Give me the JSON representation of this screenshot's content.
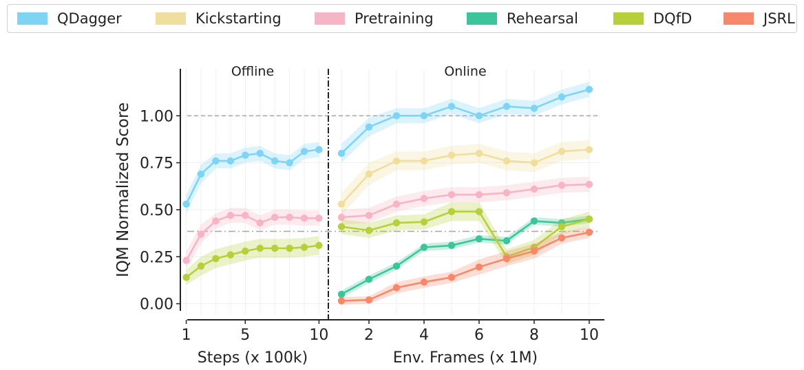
{
  "legend": {
    "entries": [
      {
        "name": "QDagger",
        "color": "#7fd4f5"
      },
      {
        "name": "Kickstarting",
        "color": "#f0df9c"
      },
      {
        "name": "Pretraining",
        "color": "#f7b4c6"
      },
      {
        "name": "Rehearsal",
        "color": "#3cc59b"
      },
      {
        "name": "DQfD",
        "color": "#b6cf3a"
      },
      {
        "name": "JSRL",
        "color": "#f7896a"
      }
    ]
  },
  "chart_data": {
    "type": "line",
    "ylabel": "IQM Normalized Score",
    "ylim": [
      -0.06,
      1.25
    ],
    "yticks": [
      "0.00",
      "0.25",
      "0.50",
      "0.75",
      "1.00"
    ],
    "ytick_values": [
      0,
      0.25,
      0.5,
      0.75,
      1.0
    ],
    "reference_lines": [
      1.0,
      0.385
    ],
    "grid": true,
    "panels": [
      {
        "title": "Offline",
        "xlabel": "Steps (x 100k)",
        "xlim": [
          0.6,
          10.4
        ],
        "xticks": [
          "1",
          "5",
          "10"
        ],
        "xtick_values": [
          1,
          5,
          10
        ],
        "x": [
          1,
          2,
          3,
          4,
          5,
          6,
          7,
          8,
          9,
          10
        ],
        "series": [
          {
            "name": "QDagger",
            "color": "#7fd4f5",
            "values": [
              0.53,
              0.69,
              0.76,
              0.76,
              0.79,
              0.8,
              0.76,
              0.75,
              0.81,
              0.82
            ],
            "band": [
              0.05,
              0.05,
              0.04,
              0.04,
              0.04,
              0.04,
              0.04,
              0.04,
              0.04,
              0.04
            ]
          },
          {
            "name": "Pretraining",
            "color": "#f7b4c6",
            "values": [
              0.23,
              0.37,
              0.44,
              0.47,
              0.47,
              0.43,
              0.46,
              0.46,
              0.455,
              0.455
            ],
            "band": [
              0.05,
              0.05,
              0.04,
              0.04,
              0.04,
              0.04,
              0.04,
              0.04,
              0.04,
              0.04
            ]
          },
          {
            "name": "DQfD",
            "color": "#b6cf3a",
            "values": [
              0.14,
              0.2,
              0.24,
              0.26,
              0.28,
              0.295,
              0.295,
              0.295,
              0.3,
              0.31
            ],
            "band": [
              0.04,
              0.05,
              0.05,
              0.05,
              0.05,
              0.05,
              0.05,
              0.05,
              0.05,
              0.05
            ]
          }
        ]
      },
      {
        "title": "Online",
        "xlabel": "Env. Frames (x 1M)",
        "xlim": [
          0.6,
          10.4
        ],
        "xticks": [
          "2",
          "4",
          "6",
          "8",
          "10"
        ],
        "xtick_values": [
          2,
          4,
          6,
          8,
          10
        ],
        "x": [
          1,
          2,
          3,
          4,
          5,
          6,
          7,
          8,
          9,
          10
        ],
        "series": [
          {
            "name": "QDagger",
            "color": "#7fd4f5",
            "values": [
              0.8,
              0.94,
              1.0,
              1.0,
              1.05,
              1.0,
              1.05,
              1.04,
              1.1,
              1.14
            ],
            "band": [
              0.05,
              0.05,
              0.04,
              0.04,
              0.04,
              0.04,
              0.04,
              0.04,
              0.04,
              0.04
            ]
          },
          {
            "name": "Kickstarting",
            "color": "#f0df9c",
            "values": [
              0.53,
              0.69,
              0.76,
              0.76,
              0.79,
              0.8,
              0.76,
              0.75,
              0.81,
              0.82
            ],
            "band": [
              0.06,
              0.06,
              0.05,
              0.05,
              0.05,
              0.05,
              0.05,
              0.05,
              0.05,
              0.05
            ]
          },
          {
            "name": "Pretraining",
            "color": "#f7b4c6",
            "values": [
              0.46,
              0.47,
              0.53,
              0.56,
              0.58,
              0.58,
              0.59,
              0.61,
              0.63,
              0.635
            ],
            "band": [
              0.04,
              0.04,
              0.04,
              0.04,
              0.04,
              0.04,
              0.04,
              0.04,
              0.04,
              0.04
            ]
          },
          {
            "name": "Rehearsal",
            "color": "#3cc59b",
            "values": [
              0.05,
              0.13,
              0.2,
              0.3,
              0.31,
              0.345,
              0.335,
              0.44,
              0.43,
              0.45
            ],
            "band": [
              0.02,
              0.02,
              0.02,
              0.02,
              0.02,
              0.02,
              0.02,
              0.02,
              0.02,
              0.02
            ]
          },
          {
            "name": "DQfD",
            "color": "#b6cf3a",
            "values": [
              0.41,
              0.39,
              0.43,
              0.435,
              0.49,
              0.49,
              0.25,
              0.3,
              0.41,
              0.45
            ],
            "band": [
              0.04,
              0.04,
              0.04,
              0.04,
              0.05,
              0.05,
              0.04,
              0.04,
              0.04,
              0.04
            ]
          },
          {
            "name": "JSRL",
            "color": "#f7896a",
            "values": [
              0.015,
              0.02,
              0.085,
              0.115,
              0.14,
              0.195,
              0.24,
              0.28,
              0.35,
              0.38
            ],
            "band": [
              0.02,
              0.02,
              0.03,
              0.03,
              0.03,
              0.04,
              0.04,
              0.04,
              0.03,
              0.03
            ]
          }
        ]
      }
    ]
  }
}
